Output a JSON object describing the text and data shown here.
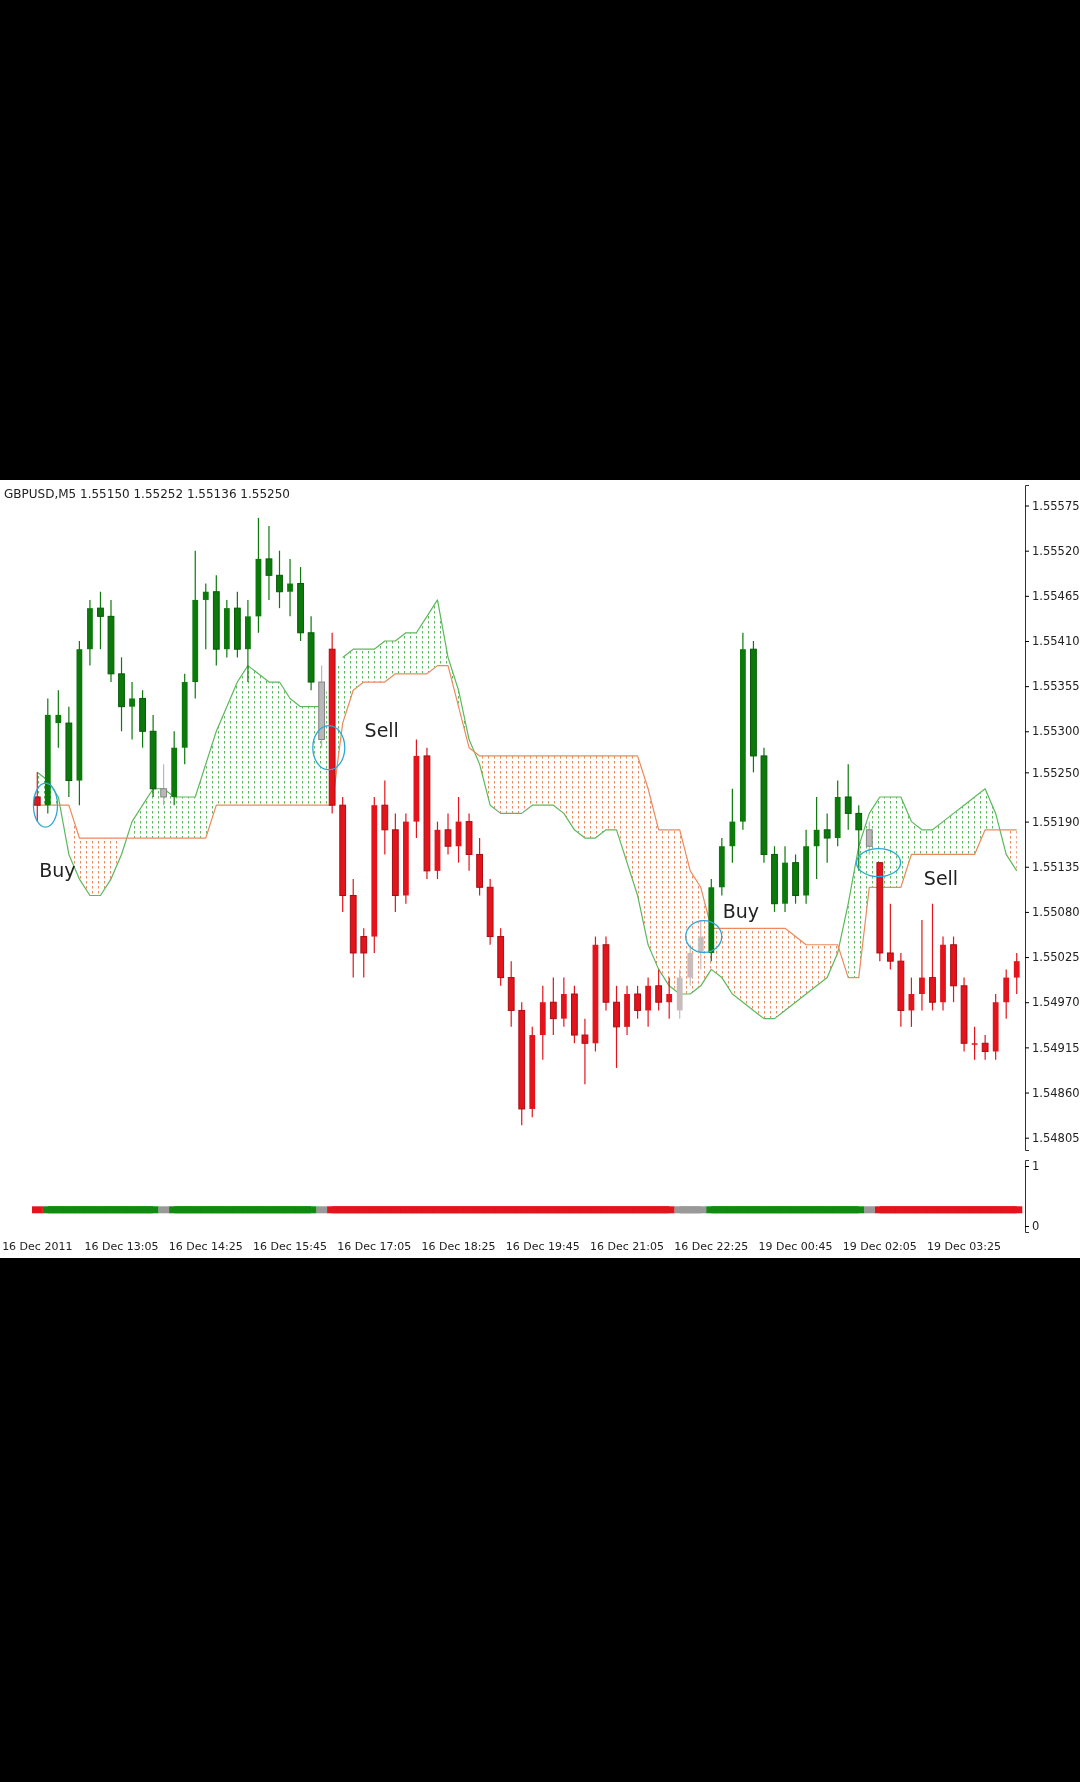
{
  "chart_data": [
    {
      "type": "candlestick",
      "title": "GBPUSD,M5  1.55150 1.55252 1.55136 1.55250",
      "categories": [
        "16 Dec 2011",
        null,
        null,
        null,
        null,
        null,
        null,
        null,
        "16 Dec 13:05",
        null,
        null,
        null,
        null,
        null,
        null,
        null,
        "16 Dec 14:25",
        null,
        null,
        null,
        null,
        null,
        null,
        null,
        "16 Dec 15:45",
        null,
        null,
        null,
        null,
        null,
        null,
        null,
        "16 Dec 17:05",
        null,
        null,
        null,
        null,
        null,
        null,
        null,
        "16 Dec 18:25",
        null,
        null,
        null,
        null,
        null,
        null,
        null,
        "16 Dec 19:45",
        null,
        null,
        null,
        null,
        null,
        null,
        null,
        "16 Dec 21:05",
        null,
        null,
        null,
        null,
        null,
        null,
        null,
        "16 Dec 22:25",
        null,
        null,
        null,
        null,
        null,
        null,
        null,
        "19 Dec 00:45",
        null,
        null,
        null,
        null,
        null,
        null,
        null,
        "19 Dec 02:05",
        null,
        null,
        null,
        null,
        null,
        null,
        null,
        "19 Dec 03:25",
        null,
        null,
        null,
        null,
        null
      ],
      "ohlc": [
        [
          1.5522,
          1.5525,
          1.5519,
          1.5521
        ],
        [
          1.5521,
          1.5534,
          1.552,
          1.5532
        ],
        [
          1.5531,
          1.5535,
          1.5528,
          1.5532
        ],
        [
          1.5531,
          1.5533,
          1.5522,
          1.5524
        ],
        [
          1.5524,
          1.5541,
          1.5521,
          1.554
        ],
        [
          1.554,
          1.5546,
          1.5538,
          1.5545
        ],
        [
          1.5545,
          1.5547,
          1.554,
          1.5544
        ],
        [
          1.5544,
          1.5546,
          1.5536,
          1.5537
        ],
        [
          1.5537,
          1.5539,
          1.553,
          1.5533
        ],
        [
          1.5533,
          1.5536,
          1.5529,
          1.5534
        ],
        [
          1.5534,
          1.5535,
          1.5528,
          1.553
        ],
        [
          1.553,
          1.5532,
          1.5522,
          1.5523
        ],
        [
          1.5523,
          1.5526,
          1.5521,
          1.5522
        ],
        [
          1.5522,
          1.553,
          1.5521,
          1.5528
        ],
        [
          1.5528,
          1.5537,
          1.5526,
          1.5536
        ],
        [
          1.5536,
          1.5552,
          1.5534,
          1.5546
        ],
        [
          1.5546,
          1.5548,
          1.554,
          1.5547
        ],
        [
          1.5547,
          1.5549,
          1.5538,
          1.554
        ],
        [
          1.554,
          1.5546,
          1.5539,
          1.5545
        ],
        [
          1.5545,
          1.5547,
          1.5539,
          1.554
        ],
        [
          1.554,
          1.5546,
          1.5536,
          1.5544
        ],
        [
          1.5544,
          1.5556,
          1.5542,
          1.5551
        ],
        [
          1.5551,
          1.5555,
          1.5546,
          1.5549
        ],
        [
          1.5549,
          1.5552,
          1.5545,
          1.5547
        ],
        [
          1.5547,
          1.5551,
          1.5544,
          1.5548
        ],
        [
          1.5548,
          1.555,
          1.5541,
          1.5542
        ],
        [
          1.5542,
          1.5544,
          1.5535,
          1.5536
        ],
        [
          1.5536,
          1.5538,
          1.5528,
          1.5529
        ],
        [
          1.554,
          1.5542,
          1.552,
          1.5521
        ],
        [
          1.5521,
          1.5522,
          1.5508,
          1.551
        ],
        [
          1.551,
          1.5512,
          1.55,
          1.5503
        ],
        [
          1.5505,
          1.5506,
          1.55,
          1.5503
        ],
        [
          1.5505,
          1.5522,
          1.5503,
          1.5521
        ],
        [
          1.5521,
          1.5524,
          1.5515,
          1.5518
        ],
        [
          1.5518,
          1.552,
          1.5508,
          1.551
        ],
        [
          1.551,
          1.552,
          1.5509,
          1.5519
        ],
        [
          1.5519,
          1.5529,
          1.5517,
          1.5527
        ],
        [
          1.5527,
          1.5528,
          1.5512,
          1.5513
        ],
        [
          1.5513,
          1.5519,
          1.5512,
          1.5518
        ],
        [
          1.5518,
          1.552,
          1.5515,
          1.5516
        ],
        [
          1.5516,
          1.5522,
          1.5514,
          1.5519
        ],
        [
          1.5519,
          1.552,
          1.5513,
          1.5515
        ],
        [
          1.5515,
          1.5517,
          1.551,
          1.5511
        ],
        [
          1.5511,
          1.5512,
          1.5504,
          1.5505
        ],
        [
          1.5505,
          1.5506,
          1.5499,
          1.55
        ],
        [
          1.55,
          1.5502,
          1.5494,
          1.5496
        ],
        [
          1.5496,
          1.5497,
          1.5482,
          1.5484
        ],
        [
          1.5484,
          1.5494,
          1.5483,
          1.5493
        ],
        [
          1.5493,
          1.5499,
          1.549,
          1.5497
        ],
        [
          1.5497,
          1.55,
          1.5493,
          1.5495
        ],
        [
          1.5495,
          1.55,
          1.5494,
          1.5498
        ],
        [
          1.5498,
          1.5499,
          1.5492,
          1.5493
        ],
        [
          1.5493,
          1.5495,
          1.5487,
          1.5492
        ],
        [
          1.5492,
          1.5505,
          1.5491,
          1.5504
        ],
        [
          1.5504,
          1.5505,
          1.5496,
          1.5497
        ],
        [
          1.5497,
          1.5499,
          1.5489,
          1.5494
        ],
        [
          1.5494,
          1.5499,
          1.5493,
          1.5498
        ],
        [
          1.5498,
          1.5499,
          1.5495,
          1.5496
        ],
        [
          1.5496,
          1.55,
          1.5494,
          1.5499
        ],
        [
          1.5499,
          1.5501,
          1.5496,
          1.5497
        ],
        [
          1.5497,
          1.55,
          1.5495,
          1.5498
        ],
        [
          1.5496,
          1.5501,
          1.5495,
          1.55
        ],
        [
          1.55,
          1.5504,
          1.5499,
          1.5503
        ],
        [
          1.5503,
          1.5507,
          1.5501,
          1.5505
        ],
        [
          1.5503,
          1.5512,
          1.5502,
          1.5511
        ],
        [
          1.5511,
          1.5517,
          1.551,
          1.5516
        ],
        [
          1.5516,
          1.5523,
          1.5514,
          1.5519
        ],
        [
          1.5519,
          1.5542,
          1.5518,
          1.554
        ],
        [
          1.554,
          1.5541,
          1.5525,
          1.5527
        ],
        [
          1.5527,
          1.5528,
          1.5514,
          1.5515
        ],
        [
          1.5515,
          1.5516,
          1.5508,
          1.5509
        ],
        [
          1.5509,
          1.5516,
          1.5508,
          1.5514
        ],
        [
          1.5514,
          1.5515,
          1.5509,
          1.551
        ],
        [
          1.551,
          1.5518,
          1.5509,
          1.5516
        ],
        [
          1.5516,
          1.5522,
          1.5512,
          1.5518
        ],
        [
          1.5518,
          1.552,
          1.5514,
          1.5517
        ],
        [
          1.5517,
          1.5524,
          1.5516,
          1.5522
        ],
        [
          1.5522,
          1.5526,
          1.5518,
          1.552
        ],
        [
          1.552,
          1.5521,
          1.5513,
          1.5518
        ],
        [
          1.5518,
          1.5519,
          1.5515,
          1.5516
        ],
        [
          1.5514,
          1.5514,
          1.5502,
          1.5503
        ],
        [
          1.5503,
          1.5509,
          1.5501,
          1.5502
        ],
        [
          1.5502,
          1.5503,
          1.5494,
          1.5496
        ],
        [
          1.5496,
          1.55,
          1.5494,
          1.5498
        ],
        [
          1.5498,
          1.5507,
          1.5496,
          1.55
        ],
        [
          1.55,
          1.5509,
          1.5496,
          1.5497
        ],
        [
          1.5497,
          1.5505,
          1.5496,
          1.5504
        ],
        [
          1.5504,
          1.5505,
          1.5497,
          1.5499
        ],
        [
          1.5499,
          1.55,
          1.5491,
          1.5492
        ],
        [
          1.5492,
          1.5494,
          1.549,
          1.5492
        ],
        [
          1.5492,
          1.5493,
          1.549,
          1.5491
        ],
        [
          1.5491,
          1.5498,
          1.549,
          1.5497
        ],
        [
          1.5497,
          1.5501,
          1.5495,
          1.55
        ],
        [
          1.55,
          1.5503,
          1.5498,
          1.5502
        ]
      ],
      "colors": [
        "#e3141c",
        "#0b7a0b",
        "#0b7a0b",
        "#0b7a0b",
        "#0b7a0b",
        "#0b7a0b",
        "#0b7a0b",
        "#0b7a0b",
        "#0b7a0b",
        "#0b7a0b",
        "#0b7a0b",
        "#0b7a0b",
        "#b8b8b8",
        "#0b7a0b",
        "#0b7a0b",
        "#0b7a0b",
        "#0b7a0b",
        "#0b7a0b",
        "#0b7a0b",
        "#0b7a0b",
        "#0b7a0b",
        "#0b7a0b",
        "#0b7a0b",
        "#0b7a0b",
        "#0b7a0b",
        "#0b7a0b",
        "#0b7a0b",
        "#b8b8b8",
        "#e3141c",
        "#e3141c",
        "#e3141c",
        "#e3141c",
        "#e3141c",
        "#e3141c",
        "#e3141c",
        "#e3141c",
        "#e3141c",
        "#e3141c",
        "#e3141c",
        "#e3141c",
        "#e3141c",
        "#e3141c",
        "#e3141c",
        "#e3141c",
        "#e3141c",
        "#e3141c",
        "#e3141c",
        "#e3141c",
        "#e3141c",
        "#e3141c",
        "#e3141c",
        "#e3141c",
        "#e3141c",
        "#e3141c",
        "#e3141c",
        "#e3141c",
        "#e3141c",
        "#e3141c",
        "#e3141c",
        "#e3141c",
        "#e3141c",
        "#c8bcbc",
        "#c8bcbc",
        "#c8bcbc",
        "#0b7a0b",
        "#0b7a0b",
        "#0b7a0b",
        "#0b7a0b",
        "#0b7a0b",
        "#0b7a0b",
        "#0b7a0b",
        "#0b7a0b",
        "#0b7a0b",
        "#0b7a0b",
        "#0b7a0b",
        "#0b7a0b",
        "#0b7a0b",
        "#0b7a0b",
        "#0b7a0b",
        "#b8b8b8",
        "#e3141c",
        "#e3141c",
        "#e3141c",
        "#e3141c",
        "#e3141c",
        "#e3141c",
        "#e3141c",
        "#e3141c",
        "#e3141c",
        "#e3141c",
        "#e3141c",
        "#e3141c",
        "#e3141c",
        "#e3141c"
      ],
      "series": [
        {
          "type": "line",
          "color": "#5cb85c",
          "values": [
            1.5525,
            1.5524,
            1.5522,
            1.5515,
            1.5512,
            1.551,
            1.551,
            1.5512,
            1.5515,
            1.5519,
            1.5521,
            1.5523,
            1.5523,
            1.5522,
            1.5522,
            1.5522,
            1.5526,
            1.553,
            1.5533,
            1.5536,
            1.5538,
            1.5537,
            1.5536,
            1.5536,
            1.5534,
            1.5533,
            1.5533,
            1.5533,
            null,
            1.5539,
            1.554,
            1.554,
            1.554,
            1.5541,
            1.5541,
            1.5542,
            1.5542,
            1.5544,
            1.5546,
            1.5539,
            1.5535,
            1.5529,
            1.5526,
            1.5521,
            1.552,
            1.552,
            1.552,
            1.5521,
            1.5521,
            1.5521,
            1.552,
            1.5518,
            1.5517,
            1.5517,
            1.5518,
            1.5518,
            1.5514,
            1.551,
            1.5504,
            1.5501,
            1.5499,
            1.5498,
            1.5498,
            1.5499,
            1.5501,
            1.55,
            1.5498,
            1.5497,
            1.5496,
            1.5495,
            1.5495,
            1.5496,
            1.5497,
            1.5498,
            1.5499,
            1.55,
            1.5503,
            1.5509,
            1.5516,
            1.552,
            1.5522,
            1.5522,
            1.5522,
            1.5519,
            1.5518,
            1.5518,
            1.5519,
            1.552,
            1.5521,
            1.5522,
            1.5523,
            1.552,
            1.5515,
            1.5513
          ],
          "lower": [
            1.5521,
            1.5521,
            1.5521,
            null,
            null,
            null,
            null,
            null,
            null,
            1.5517,
            1.5517,
            1.5517,
            1.5517,
            1.5517,
            1.5517,
            1.5517,
            1.5517,
            1.5521,
            1.5521,
            1.5521,
            1.5521,
            1.5521,
            1.5521,
            1.5521,
            1.5521,
            1.5521,
            1.5521,
            1.5521,
            1.5521,
            1.5531,
            1.5535,
            1.5536,
            1.5536,
            1.5536,
            1.5537,
            1.5537,
            1.5537,
            1.5537,
            1.5538,
            1.5538,
            1.5533,
            1.5528,
            null,
            null,
            null,
            null,
            null,
            null,
            null,
            null,
            null,
            null,
            null,
            null,
            null,
            null,
            null,
            null,
            null,
            null,
            null,
            null,
            null,
            null,
            null,
            null,
            null,
            null,
            null,
            null,
            null,
            null,
            null,
            null,
            null,
            null,
            null,
            1.55,
            1.55,
            1.5511,
            1.5511,
            1.5511,
            1.5511,
            1.5515,
            1.5515,
            1.5515,
            1.5515,
            1.5515,
            1.5515,
            1.5515,
            1.5518,
            1.5518,
            null,
            null
          ],
          "upper": [
            1.5525,
            1.5524,
            1.5522,
            null,
            null,
            null,
            null,
            null,
            null,
            1.5519,
            1.5521,
            1.5523,
            1.5523,
            1.5522,
            1.5522,
            1.5522,
            1.5526,
            1.553,
            1.5533,
            1.5536,
            1.5538,
            1.5537,
            1.5536,
            1.5536,
            1.5534,
            1.5533,
            1.5533,
            1.5533,
            1.5537,
            1.5539,
            1.554,
            1.554,
            1.554,
            1.5541,
            1.5541,
            1.5542,
            1.5542,
            1.5544,
            1.5546,
            1.5539,
            1.5535,
            1.5529,
            null,
            null,
            null,
            null,
            null,
            null,
            null,
            null,
            null,
            null,
            null,
            null,
            null,
            null,
            null,
            null,
            null,
            null,
            null,
            null,
            null,
            null,
            null,
            null,
            null,
            null,
            null,
            null,
            null,
            null,
            null,
            null,
            null,
            null,
            null,
            1.5509,
            1.5516,
            1.552,
            1.5522,
            1.5522,
            1.5522,
            1.5519,
            1.5518,
            1.5518,
            1.5519,
            1.552,
            1.5521,
            1.5522,
            1.5523,
            1.552,
            null,
            null
          ]
        },
        {
          "type": "line",
          "color": "#ec8a5e",
          "values": [
            1.5521,
            1.5521,
            1.5521,
            1.5521,
            1.5517,
            1.5517,
            1.5517,
            1.5517,
            1.5517,
            1.5517,
            1.5517,
            1.5517,
            1.5517,
            1.5517,
            1.5517,
            1.5517,
            1.5517,
            1.5521,
            1.5521,
            1.5521,
            1.5521,
            1.5521,
            1.5521,
            1.5521,
            1.5521,
            1.5521,
            1.5521,
            1.5521,
            1.5521,
            1.5531,
            1.5535,
            1.5536,
            1.5536,
            1.5536,
            1.5537,
            1.5537,
            1.5537,
            1.5537,
            1.5538,
            1.5538,
            1.5533,
            1.5528,
            1.5527,
            1.5527,
            1.5527,
            1.5527,
            1.5527,
            1.5527,
            1.5527,
            1.5527,
            1.5527,
            1.5527,
            1.5527,
            1.5527,
            1.5527,
            1.5527,
            1.5527,
            1.5527,
            1.5523,
            1.5518,
            1.5518,
            1.5518,
            1.5513,
            1.5511,
            1.5506,
            1.5506,
            1.5506,
            1.5506,
            1.5506,
            1.5506,
            1.5506,
            1.5506,
            1.5505,
            1.5504,
            1.5504,
            1.5504,
            1.5504,
            1.55,
            1.55,
            1.5511,
            1.5511,
            1.5511,
            1.5511,
            1.5515,
            1.5515,
            1.5515,
            1.5515,
            1.5515,
            1.5515,
            1.5515,
            1.5518,
            1.5518,
            1.5518,
            1.5518
          ],
          "lower": [
            null,
            null,
            null,
            1.5515,
            1.5512,
            1.551,
            1.551,
            1.5512,
            1.5515,
            null,
            null,
            null,
            null,
            null,
            null,
            null,
            null,
            null,
            null,
            null,
            null,
            null,
            null,
            null,
            null,
            null,
            null,
            null,
            null,
            null,
            null,
            null,
            null,
            null,
            null,
            null,
            null,
            null,
            null,
            null,
            null,
            null,
            1.5526,
            1.5521,
            1.552,
            1.552,
            1.552,
            1.5521,
            1.5521,
            1.5521,
            1.552,
            1.5518,
            1.5517,
            1.5517,
            1.5518,
            1.5518,
            1.5514,
            1.551,
            1.5504,
            1.5501,
            1.5499,
            1.5498,
            1.5498,
            1.5499,
            1.5501,
            1.55,
            1.5498,
            1.5497,
            1.5496,
            1.5495,
            1.5495,
            1.5496,
            1.5497,
            1.5498,
            1.5499,
            1.55,
            1.5503,
            null,
            null,
            null,
            null,
            null,
            null,
            null,
            null,
            null,
            null,
            null,
            null,
            null,
            null,
            null,
            1.5515,
            1.5513
          ],
          "upper": [
            null,
            null,
            null,
            1.5521,
            1.5517,
            1.5517,
            1.5517,
            1.5517,
            1.5517,
            null,
            null,
            null,
            null,
            null,
            null,
            null,
            null,
            null,
            null,
            null,
            null,
            null,
            null,
            null,
            null,
            null,
            null,
            null,
            null,
            null,
            null,
            null,
            null,
            null,
            null,
            null,
            null,
            null,
            null,
            null,
            null,
            null,
            1.5527,
            1.5527,
            1.5527,
            1.5527,
            1.5527,
            1.5527,
            1.5527,
            1.5527,
            1.5527,
            1.5527,
            1.5527,
            1.5527,
            1.5527,
            1.5527,
            1.5527,
            1.5527,
            1.5523,
            1.5518,
            1.5518,
            1.5518,
            1.5513,
            1.5511,
            1.5506,
            1.5506,
            1.5506,
            1.5506,
            1.5506,
            1.5506,
            1.5506,
            1.5506,
            1.5505,
            1.5504,
            1.5504,
            1.5504,
            1.5504,
            null,
            null,
            null,
            null,
            null,
            null,
            null,
            null,
            null,
            null,
            null,
            null,
            null,
            null,
            null,
            1.5518,
            1.5518
          ]
        }
      ],
      "ylim": [
        1.5479,
        1.556
      ],
      "yticks": [
        1.54805,
        {
          "value": 1.5486,
          "label": "1.54860"
        },
        1.54915,
        {
          "value": 1.5497,
          "label": "1.54970"
        },
        1.55025,
        {
          "value": 1.5508,
          "label": "1.55080"
        },
        1.55135,
        {
          "value": 1.5519,
          "label": "1.55190"
        },
        {
          "value": 1.5525,
          "label": "1.55250"
        },
        {
          "value": 1.553,
          "label": "1.55300"
        },
        1.55355,
        {
          "value": 1.5541,
          "label": "1.55410"
        },
        1.55465,
        {
          "value": 1.5552,
          "label": "1.55520"
        },
        1.55575
      ],
      "annotations": [
        "Buy",
        "Sell",
        "Buy",
        "Sell"
      ]
    },
    {
      "type": "line",
      "categories": [
        null,
        null,
        null,
        null,
        null,
        null,
        null,
        null,
        null,
        null,
        null,
        null,
        null,
        null,
        null,
        null,
        null,
        null,
        null,
        null,
        null,
        null,
        null,
        null,
        null,
        null,
        null,
        null,
        null,
        null,
        null,
        null,
        null,
        null,
        null,
        null,
        null,
        null,
        null,
        null,
        null,
        null,
        null,
        null,
        null,
        null,
        null,
        null,
        null,
        null,
        null,
        null,
        null,
        null,
        null,
        null,
        null,
        null,
        null,
        null,
        null,
        null,
        null,
        null,
        null,
        null,
        null,
        null,
        null,
        null,
        null,
        null,
        null,
        null,
        null,
        null,
        null,
        null,
        null,
        null,
        null,
        null,
        null,
        null,
        null,
        null,
        null,
        null,
        null,
        null,
        null,
        null,
        null,
        null
      ],
      "series": [
        {
          "color": "#118a11",
          "values": [
            null,
            0.27,
            0.27,
            0.27,
            0.27,
            0.27,
            0.27,
            0.27,
            0.27,
            0.27,
            0.27,
            0.27,
            null,
            0.27,
            0.27,
            0.27,
            0.27,
            0.27,
            0.27,
            0.27,
            0.27,
            0.27,
            0.27,
            0.27,
            0.27,
            0.27,
            0.27,
            null,
            null,
            null,
            null,
            null,
            null,
            null,
            null,
            null,
            null,
            null,
            null,
            null,
            null,
            null,
            null,
            null,
            null,
            null,
            null,
            null,
            null,
            null,
            null,
            null,
            null,
            null,
            null,
            null,
            null,
            null,
            null,
            null,
            null,
            null,
            null,
            null,
            0.27,
            0.27,
            0.27,
            0.27,
            0.27,
            0.27,
            0.27,
            0.27,
            0.27,
            0.27,
            0.27,
            0.27,
            0.27,
            0.27,
            0.27,
            null,
            null,
            null,
            null,
            null,
            null,
            null,
            null,
            null,
            null,
            null,
            null,
            null,
            null,
            null
          ]
        },
        {
          "color": "#e3141c",
          "values": [
            0.27,
            null,
            null,
            null,
            null,
            null,
            null,
            null,
            null,
            null,
            null,
            null,
            null,
            null,
            null,
            null,
            null,
            null,
            null,
            null,
            null,
            null,
            null,
            null,
            null,
            null,
            null,
            null,
            0.27,
            0.27,
            0.27,
            0.27,
            0.27,
            0.27,
            0.27,
            0.27,
            0.27,
            0.27,
            0.27,
            0.27,
            0.27,
            0.27,
            0.27,
            0.27,
            0.27,
            0.27,
            0.27,
            0.27,
            0.27,
            0.27,
            0.27,
            0.27,
            0.27,
            0.27,
            0.27,
            0.27,
            0.27,
            0.27,
            0.27,
            0.27,
            0.27,
            null,
            null,
            null,
            null,
            null,
            null,
            null,
            null,
            null,
            null,
            null,
            null,
            null,
            null,
            null,
            null,
            null,
            null,
            null,
            0.27,
            0.27,
            0.27,
            0.27,
            0.27,
            0.27,
            0.27,
            0.27,
            0.27,
            0.27,
            0.27,
            0.27,
            0.27,
            0.27
          ]
        },
        {
          "color": "#999999",
          "values": [
            null,
            null,
            null,
            null,
            null,
            null,
            null,
            null,
            null,
            null,
            null,
            null,
            0.27,
            null,
            null,
            null,
            null,
            null,
            null,
            null,
            null,
            null,
            null,
            null,
            null,
            null,
            null,
            0.27,
            null,
            null,
            null,
            null,
            null,
            null,
            null,
            null,
            null,
            null,
            null,
            null,
            null,
            null,
            null,
            null,
            null,
            null,
            null,
            null,
            null,
            null,
            null,
            null,
            null,
            null,
            null,
            null,
            null,
            null,
            null,
            null,
            null,
            0.27,
            0.27,
            0.27,
            null,
            null,
            null,
            null,
            null,
            null,
            null,
            null,
            null,
            null,
            null,
            null,
            null,
            null,
            null,
            0.27,
            null,
            null,
            null,
            null,
            null,
            null,
            null,
            null,
            null,
            null,
            null,
            null,
            null,
            null
          ]
        }
      ],
      "ylim": [
        -0.1,
        1.1
      ],
      "yticks": [
        0,
        1
      ],
      "marker": "square",
      "tick_labels": "y"
    }
  ]
}
